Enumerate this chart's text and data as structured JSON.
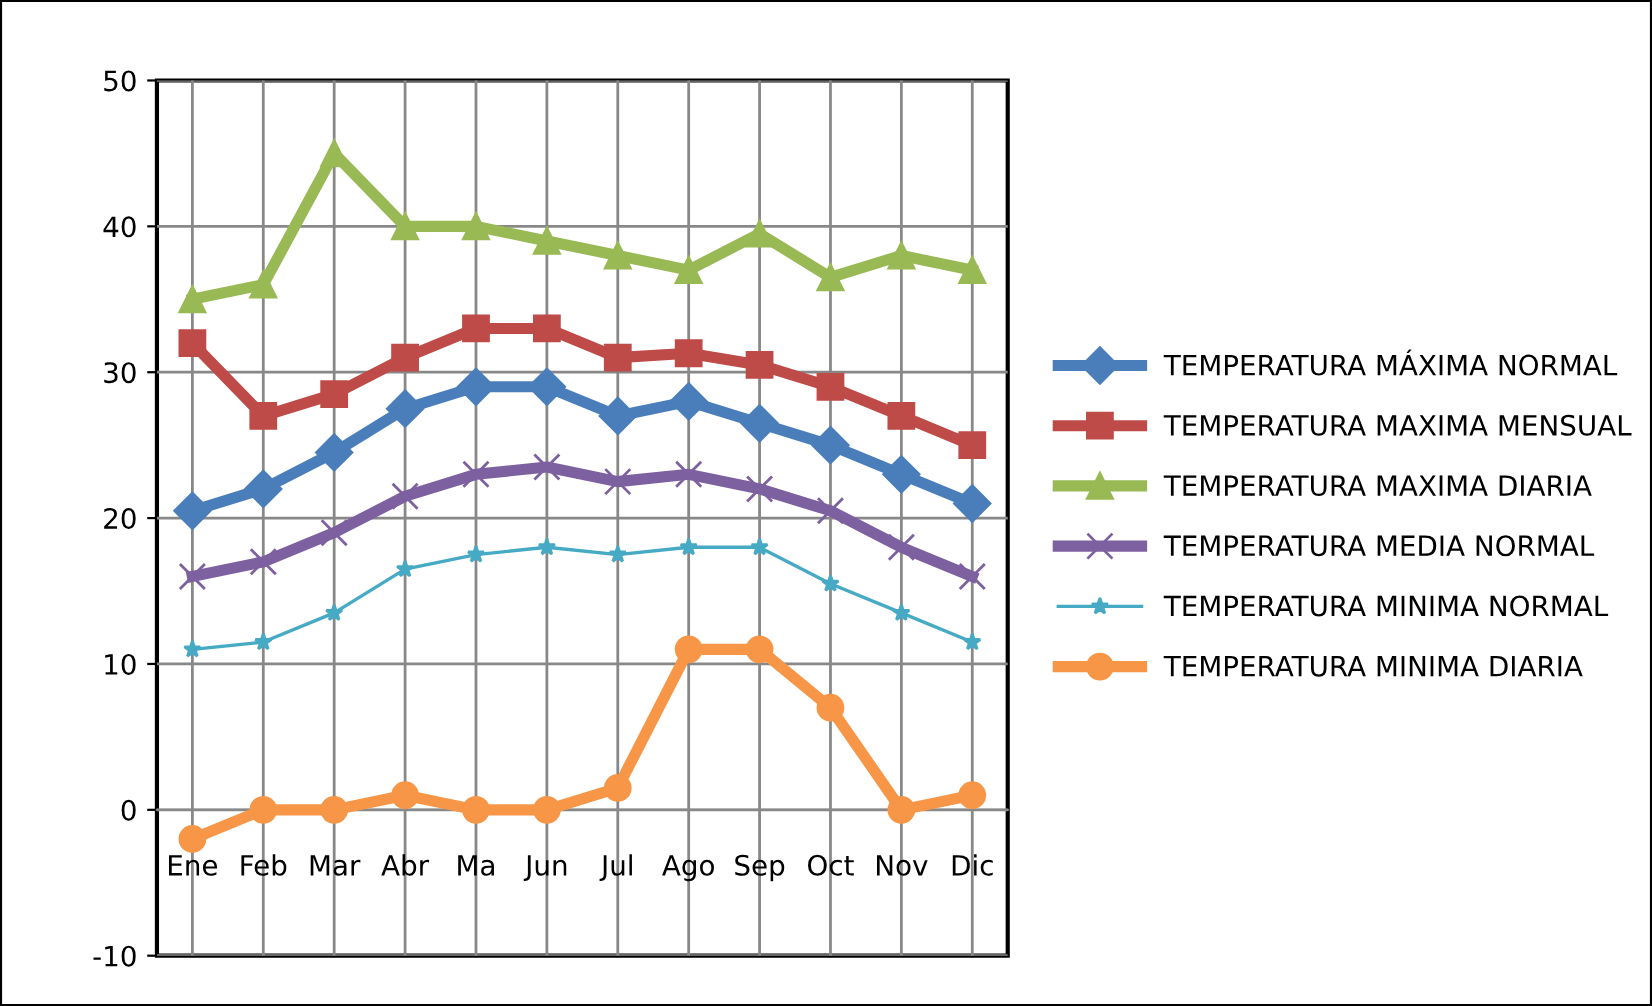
{
  "chart_data": {
    "type": "line",
    "categories": [
      "Ene",
      "Feb",
      "Mar",
      "Abr",
      "Ma",
      "Jun",
      "Jul",
      "Ago",
      "Sep",
      "Oct",
      "Nov",
      "Dic"
    ],
    "series": [
      {
        "name": "TEMPERATURA MÁXIMA NORMAL",
        "color": "#4a7ebb",
        "marker": "diamond",
        "values": [
          20.5,
          22,
          24.5,
          27.5,
          29,
          29,
          27,
          28,
          26.5,
          25,
          23,
          21
        ]
      },
      {
        "name": "TEMPERATURA MAXIMA MENSUAL",
        "color": "#be4b48",
        "marker": "square",
        "values": [
          32,
          27,
          28.5,
          31,
          33,
          33,
          31,
          31.3,
          30.5,
          29,
          27,
          25
        ]
      },
      {
        "name": "TEMPERATURA MAXIMA DIARIA",
        "color": "#98b954",
        "marker": "triangle",
        "values": [
          35,
          36,
          45,
          40,
          40,
          39,
          38,
          37,
          39.5,
          36.5,
          38,
          37
        ]
      },
      {
        "name": "TEMPERATURA MEDIA NORMAL",
        "color": "#7d60a0",
        "marker": "cross",
        "values": [
          16,
          17,
          19,
          21.5,
          23,
          23.5,
          22.5,
          23,
          22,
          20.5,
          18,
          16
        ]
      },
      {
        "name": "TEMPERATURA MINIMA NORMAL",
        "color": "#46aac5",
        "marker": "star",
        "values": [
          11,
          11.5,
          13.5,
          16.5,
          17.5,
          18,
          17.5,
          18,
          18,
          15.5,
          13.5,
          11.5
        ]
      },
      {
        "name": "TEMPERATURA MINIMA DIARIA",
        "color": "#f79646",
        "marker": "circle",
        "values": [
          -2,
          0,
          0,
          1,
          0,
          0,
          1.5,
          11,
          11,
          7,
          0,
          1
        ]
      }
    ],
    "ylim": [
      -10,
      50
    ],
    "yticks": [
      -10,
      0,
      10,
      20,
      30,
      40,
      50
    ],
    "grid": true,
    "legend": "right"
  }
}
